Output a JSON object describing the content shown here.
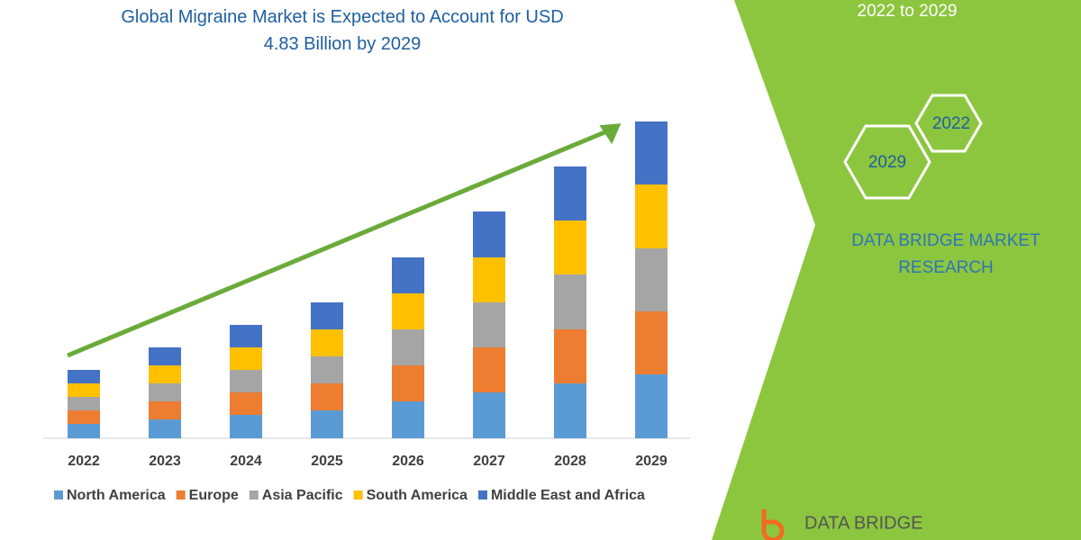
{
  "chart_data": {
    "type": "stacked_bar",
    "title": "Global Migraine Market is Expected to Account for USD 4.83 Billion by 2029",
    "categories": [
      "2022",
      "2023",
      "2024",
      "2025",
      "2026",
      "2027",
      "2028",
      "2029"
    ],
    "series": [
      {
        "name": "North America",
        "color": "#5b9bd5",
        "values": [
          16,
          21,
          26,
          31,
          41,
          51,
          61,
          71
        ]
      },
      {
        "name": "Europe",
        "color": "#ed7d31",
        "values": [
          15,
          20,
          25,
          30,
          40,
          50,
          60,
          70
        ]
      },
      {
        "name": "Asia Pacific",
        "color": "#a5a5a5",
        "values": [
          15,
          20,
          25,
          30,
          40,
          50,
          61,
          70
        ]
      },
      {
        "name": "South America",
        "color": "#ffc000",
        "values": [
          15,
          20,
          25,
          30,
          40,
          50,
          60,
          71
        ]
      },
      {
        "name": "Middle East and Africa",
        "color": "#4472c4",
        "values": [
          15,
          20,
          25,
          30,
          40,
          51,
          60,
          70
        ]
      }
    ]
  },
  "panel": {
    "period": "2022 to 2029",
    "hex_start": "2022",
    "hex_end": "2029",
    "company": "DATA BRIDGE MARKET RESEARCH",
    "logo": "DATA BRIDGE"
  }
}
